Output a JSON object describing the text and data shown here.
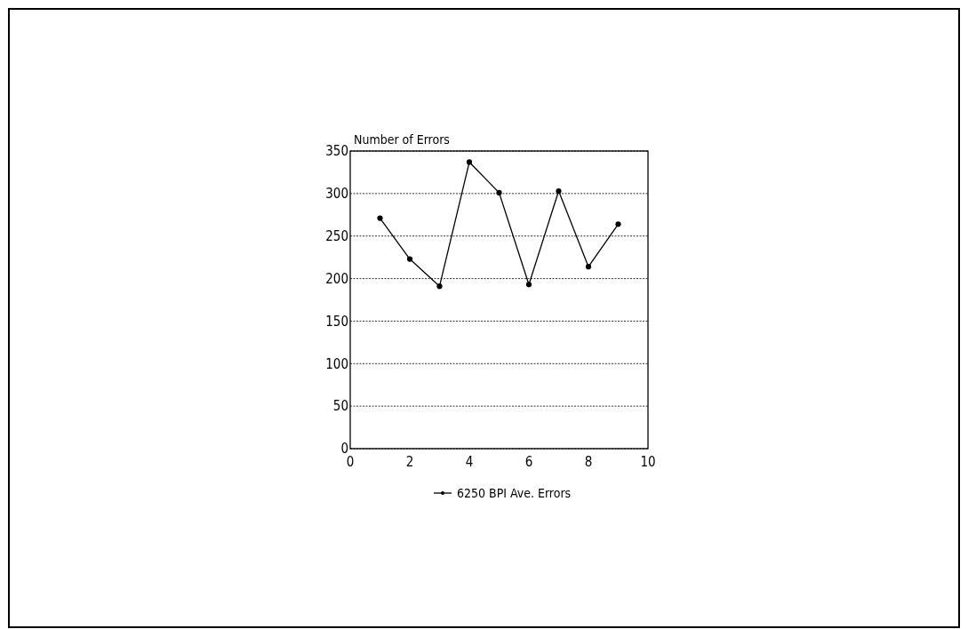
{
  "chart_data": {
    "type": "line",
    "ylabel": "Number of Errors",
    "x": [
      1,
      2,
      3,
      4,
      5,
      6,
      7,
      8,
      9
    ],
    "series": [
      {
        "name": "6250 BPI Ave. Errors",
        "color": "#000000",
        "values": [
          271,
          223,
          191,
          337,
          301,
          193,
          303,
          214,
          264
        ]
      }
    ],
    "xlim": [
      0,
      10
    ],
    "xticks": [
      0,
      2,
      4,
      6,
      8,
      10
    ],
    "ylim": [
      0,
      350
    ],
    "yticks": [
      0,
      50,
      100,
      150,
      200,
      250,
      300,
      350
    ],
    "grid": "y",
    "legend": "bottom",
    "marker": "circle",
    "line_style": "solid"
  }
}
